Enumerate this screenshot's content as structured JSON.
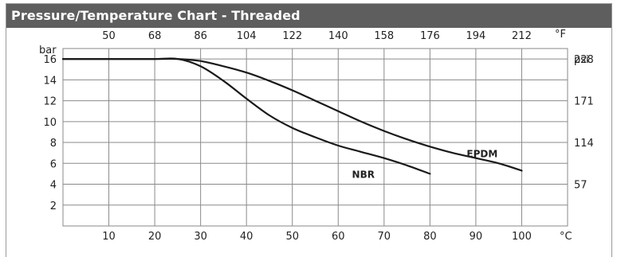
{
  "header": {
    "title": "Pressure/Temperature Chart - Threaded"
  },
  "colors": {
    "title_bar": "#5e5e5e",
    "grid": "#8a8a8a",
    "curve": "#1a1a1a"
  },
  "chart_data": {
    "type": "line",
    "title": "Pressure/Temperature Chart - Threaded",
    "x_axis": {
      "unit": "°C",
      "range": [
        0,
        110
      ],
      "ticks": [
        10,
        20,
        30,
        40,
        50,
        60,
        70,
        80,
        90,
        100
      ]
    },
    "x_axis_top": {
      "unit": "°F",
      "ticks": [
        50,
        68,
        86,
        104,
        122,
        140,
        158,
        176,
        194,
        212
      ]
    },
    "y_axis": {
      "unit": "bar",
      "range": [
        0,
        17
      ],
      "ticks": [
        2,
        4,
        6,
        8,
        10,
        12,
        14,
        16
      ]
    },
    "y_axis_right": {
      "unit": "psi",
      "ticks": [
        {
          "label": "228",
          "bar": 16
        },
        {
          "label": "171",
          "bar": 12
        },
        {
          "label": "114",
          "bar": 8
        },
        {
          "label": "57",
          "bar": 4
        }
      ]
    },
    "grid": true,
    "series": [
      {
        "name": "EPDM",
        "x": [
          0,
          10,
          20,
          25,
          30,
          35,
          40,
          45,
          50,
          55,
          60,
          65,
          70,
          75,
          80,
          85,
          90,
          95,
          100
        ],
        "y": [
          16,
          16,
          16,
          16,
          15.8,
          15.3,
          14.7,
          13.9,
          13.0,
          12.0,
          11.0,
          10.0,
          9.1,
          8.3,
          7.6,
          7.0,
          6.5,
          6.0,
          5.3
        ]
      },
      {
        "name": "NBR",
        "x": [
          0,
          10,
          20,
          25,
          30,
          35,
          40,
          45,
          50,
          55,
          60,
          65,
          70,
          75,
          80
        ],
        "y": [
          16,
          16,
          16,
          16,
          15.3,
          13.9,
          12.2,
          10.6,
          9.4,
          8.5,
          7.7,
          7.1,
          6.5,
          5.8,
          5.0
        ]
      }
    ]
  }
}
